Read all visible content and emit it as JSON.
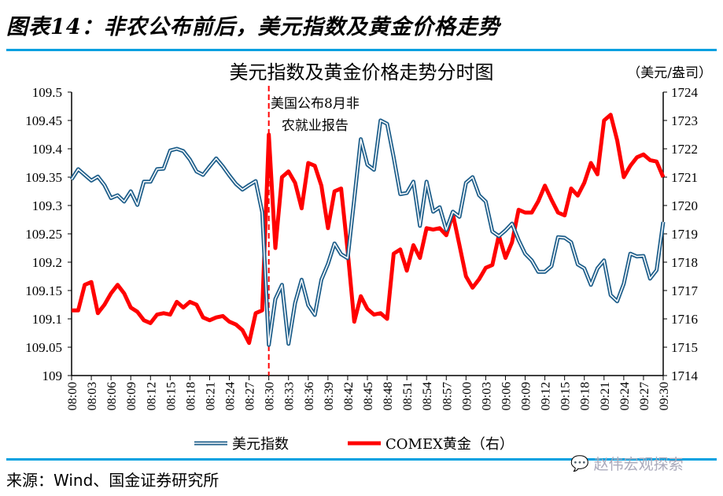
{
  "figure_title": "图表14：非农公布前后，美元指数及黄金价格走势",
  "source": "来源：Wind、国金证券研究所",
  "watermark": "赵伟宏观探索",
  "chart_data": {
    "type": "line",
    "title": "美元指数及黄金价格走势分时图",
    "right_unit": "（美元/盎司）",
    "annotation": {
      "line1": "美国公布8月非",
      "line2": "农就业报告",
      "at": "08:30",
      "color": "#ff0000"
    },
    "x_start": "08:00",
    "x_end": "09:30",
    "x_step_minutes": 1,
    "x_tick_labels": [
      "08:00",
      "08:03",
      "08:06",
      "08:09",
      "08:12",
      "08:15",
      "08:18",
      "08:21",
      "08:24",
      "08:27",
      "08:30",
      "08:33",
      "08:36",
      "08:39",
      "08:42",
      "08:45",
      "08:48",
      "08:51",
      "08:54",
      "08:57",
      "09:00",
      "09:03",
      "09:06",
      "09:09",
      "09:12",
      "09:15",
      "09:18",
      "09:21",
      "09:24",
      "09:27",
      "09:30"
    ],
    "y_left": {
      "min": 109,
      "max": 109.5,
      "ticks": [
        "109",
        "109.05",
        "109.1",
        "109.15",
        "109.2",
        "109.25",
        "109.3",
        "109.35",
        "109.4",
        "109.45",
        "109.5"
      ]
    },
    "y_right": {
      "min": 1714,
      "max": 1724,
      "ticks": [
        "1714",
        "1715",
        "1716",
        "1717",
        "1718",
        "1719",
        "1720",
        "1721",
        "1722",
        "1723",
        "1724"
      ]
    },
    "series": [
      {
        "name": "美元指数",
        "axis": "left",
        "color": "#1f5f8b",
        "values": [
          109.346,
          109.364,
          109.354,
          109.344,
          109.351,
          109.336,
          109.313,
          109.318,
          109.307,
          109.325,
          109.301,
          109.342,
          109.342,
          109.364,
          109.365,
          109.397,
          109.4,
          109.396,
          109.381,
          109.36,
          109.354,
          109.369,
          109.383,
          109.369,
          109.353,
          109.338,
          109.328,
          109.336,
          109.343,
          109.288,
          109.054,
          109.135,
          109.16,
          109.056,
          109.128,
          109.169,
          109.124,
          109.107,
          109.169,
          109.197,
          109.233,
          109.214,
          109.207,
          109.311,
          109.417,
          109.372,
          109.363,
          109.45,
          109.444,
          109.385,
          109.32,
          109.322,
          109.342,
          109.264,
          109.342,
          109.289,
          109.297,
          109.257,
          109.289,
          109.28,
          109.34,
          109.35,
          109.318,
          109.307,
          109.254,
          109.246,
          109.256,
          109.268,
          109.239,
          109.215,
          109.203,
          109.183,
          109.183,
          109.193,
          109.244,
          109.243,
          109.235,
          109.196,
          109.189,
          109.16,
          109.189,
          109.203,
          109.142,
          109.131,
          109.162,
          109.215,
          109.21,
          109.211,
          109.171,
          109.186,
          109.271
        ]
      },
      {
        "name": "COMEX黄金（右）",
        "axis": "right",
        "color": "#ff0000",
        "values": [
          1716.3,
          1716.3,
          1717.2,
          1717.3,
          1716.2,
          1716.5,
          1716.9,
          1717.2,
          1716.9,
          1716.4,
          1716.25,
          1715.95,
          1715.85,
          1716.15,
          1716.2,
          1716.15,
          1716.6,
          1716.4,
          1716.6,
          1716.5,
          1716.05,
          1715.95,
          1716.05,
          1716.1,
          1715.9,
          1715.8,
          1715.6,
          1715.15,
          1716.2,
          1716.3,
          1722.5,
          1718.5,
          1721.0,
          1721.2,
          1720.8,
          1719.9,
          1721.5,
          1721.4,
          1720.7,
          1719.2,
          1720.5,
          1720.6,
          1718.4,
          1715.9,
          1716.8,
          1716.35,
          1716.15,
          1716.2,
          1716.0,
          1718.3,
          1718.45,
          1717.7,
          1718.6,
          1718.15,
          1719.2,
          1719.15,
          1719.2,
          1718.95,
          1719.7,
          1718.6,
          1717.5,
          1717.1,
          1717.4,
          1717.8,
          1717.9,
          1718.95,
          1718.15,
          1718.7,
          1719.85,
          1719.75,
          1719.75,
          1720.15,
          1720.7,
          1720.2,
          1719.75,
          1719.65,
          1720.6,
          1720.35,
          1720.8,
          1721.5,
          1721.1,
          1723.0,
          1723.2,
          1722.3,
          1721.0,
          1721.4,
          1721.7,
          1721.8,
          1721.6,
          1721.55,
          1721.0
        ]
      }
    ],
    "legend_position": "bottom",
    "grid": false
  }
}
